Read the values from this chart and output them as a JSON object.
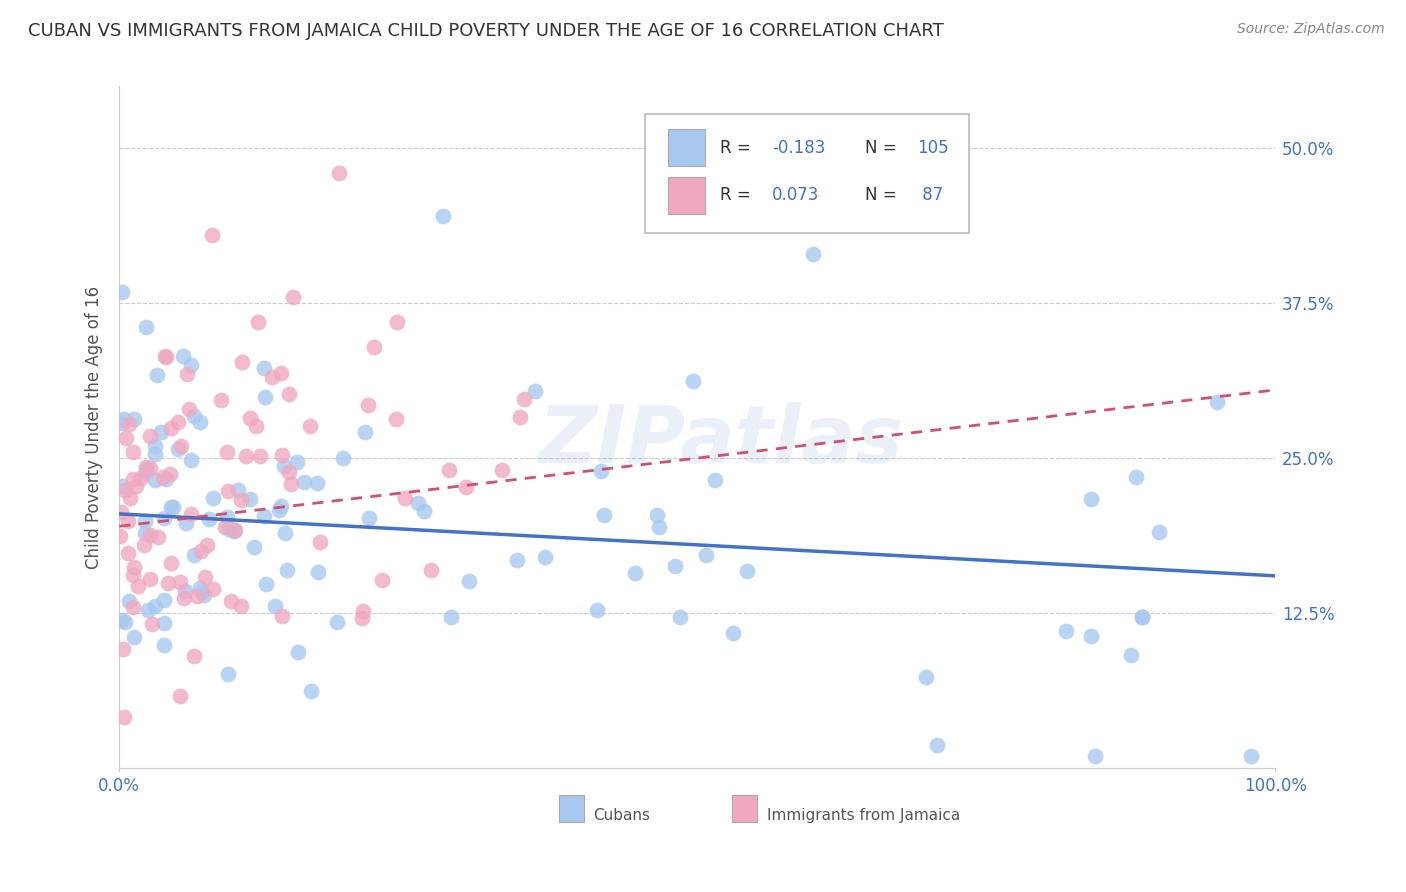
{
  "title": "CUBAN VS IMMIGRANTS FROM JAMAICA CHILD POVERTY UNDER THE AGE OF 16 CORRELATION CHART",
  "source": "Source: ZipAtlas.com",
  "ylabel": "Child Poverty Under the Age of 16",
  "xlim": [
    0.0,
    1.0
  ],
  "ylim": [
    0.0,
    0.55
  ],
  "yticks": [
    0.0,
    0.125,
    0.25,
    0.375,
    0.5
  ],
  "ytick_labels": [
    "",
    "12.5%",
    "25.0%",
    "37.5%",
    "50.0%"
  ],
  "xtick_labels": [
    "0.0%",
    "100.0%"
  ],
  "xticks": [
    0.0,
    1.0
  ],
  "cubans_R": -0.183,
  "cubans_N": 105,
  "jamaica_R": 0.073,
  "jamaica_N": 87,
  "cubans_color": "#a8c8f0",
  "jamaica_color": "#f0a8c0",
  "cubans_line_color": "#4472c4",
  "jamaica_line_color": "#d05070",
  "legend_text_color": "#4472c4",
  "watermark": "ZIPatlas",
  "background_color": "#ffffff",
  "grid_color": "#cccccc",
  "title_fontsize": 13,
  "axis_label_fontsize": 12,
  "tick_fontsize": 12,
  "cubans_line_start_y": 0.205,
  "cubans_line_end_y": 0.155,
  "jamaica_line_start_y": 0.195,
  "jamaica_line_end_y": 0.305
}
